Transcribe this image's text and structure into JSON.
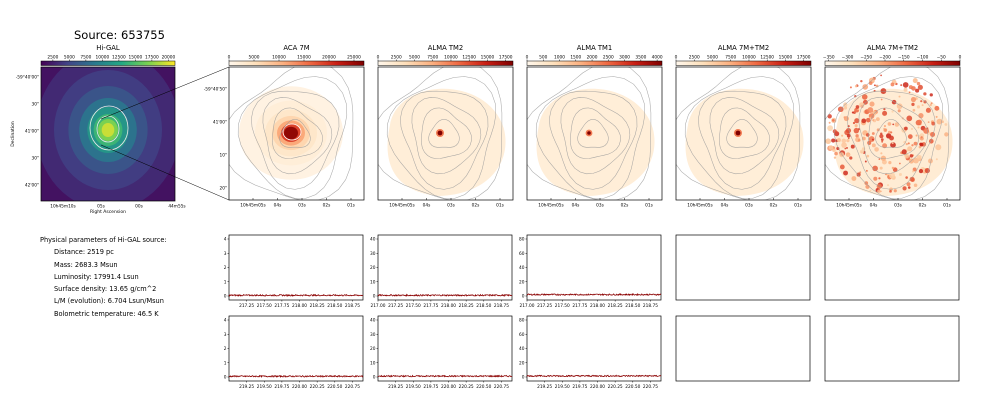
{
  "source_title": "Source: 653755",
  "info": {
    "header": "Physical parameters of Hi-GAL source:",
    "rows": [
      "Distance: 2519 pc",
      "Mass: 2683.3 Msun",
      "Luminosity: 17991.4 Lsun",
      "Surface density: 13.65 g/cm^2",
      "L/M (evolution): 6.704 Lsun/Msun",
      "Bolometric temperature: 46.5 K"
    ]
  },
  "colors": {
    "spectrum": "#8b0000",
    "frame": "#000000",
    "contour": "#9a9a9a"
  },
  "chart_data": [
    {
      "type": "heatmap",
      "title": "Hi-GAL",
      "colormap": "viridis",
      "colorbar_ticks": [
        "2500",
        "5000",
        "7500",
        "10000",
        "12500",
        "15000",
        "17500",
        "20000"
      ],
      "colorbar_range": [
        700,
        21000
      ],
      "xlabel": "Right Ascension",
      "ylabel": "Declination",
      "xticks": [
        "10h45m10s",
        "05s",
        "00s",
        "44m55s"
      ],
      "yticks": [
        "-59°40'00\"",
        "30\"",
        "41'00\"",
        "30\"",
        "42'00\""
      ]
    },
    {
      "type": "heatmap",
      "title": "ACA 7M",
      "colormap": "OrRd",
      "colorbar_ticks": [
        "0",
        "5000",
        "10000",
        "15000",
        "20000",
        "25000"
      ],
      "colorbar_range": [
        0,
        27000
      ],
      "xticks": [
        "10h45m05s",
        "04s",
        "03s",
        "02s",
        "01s"
      ],
      "yticks": [
        "-59°40'50\"",
        "41'00\"",
        "10\"",
        "20\""
      ]
    },
    {
      "type": "heatmap",
      "title": "ALMA TM2",
      "colormap": "OrRd",
      "colorbar_ticks": [
        "0",
        "2500",
        "5000",
        "7500",
        "10000",
        "12500",
        "15000",
        "17500"
      ],
      "colorbar_range": [
        0,
        18500
      ],
      "xticks": [
        "10h45m05s",
        "04s",
        "03s",
        "02s",
        "01s"
      ]
    },
    {
      "type": "heatmap",
      "title": "ALMA TM1",
      "colormap": "OrRd",
      "colorbar_ticks": [
        "0",
        "500",
        "1000",
        "1500",
        "2000",
        "2500",
        "3000",
        "3500",
        "4000"
      ],
      "colorbar_range": [
        0,
        4150
      ],
      "xticks": [
        "10h45m05s",
        "04s",
        "03s",
        "02s",
        "01s"
      ]
    },
    {
      "type": "heatmap",
      "title": "ALMA 7M+TM2",
      "colormap": "OrRd",
      "colorbar_ticks": [
        "0",
        "2500",
        "5000",
        "7500",
        "10000",
        "12500",
        "15000",
        "17500"
      ],
      "colorbar_range": [
        0,
        18500
      ],
      "xticks": [
        "10h45m05s",
        "04s",
        "03s",
        "02s",
        "01s"
      ]
    },
    {
      "type": "heatmap",
      "title": "ALMA 7M+TM2",
      "colormap": "OrRd",
      "colorbar_ticks": [
        "−350",
        "−300",
        "−250",
        "−200",
        "−150",
        "−100",
        "−50",
        "0"
      ],
      "colorbar_range": [
        -360,
        0
      ],
      "xticks": [
        "10h45m05s",
        "04s",
        "03s",
        "02s",
        "01s"
      ]
    },
    {
      "type": "line",
      "xlim": [
        217.0,
        218.9
      ],
      "xticks": [
        "217.25",
        "217.50",
        "217.75",
        "218.00",
        "218.25",
        "218.50",
        "218.75"
      ],
      "ylim": [
        0,
        4
      ],
      "yticks": [
        "0",
        "1",
        "2",
        "3",
        "4"
      ],
      "baseline": 0.05
    },
    {
      "type": "line",
      "xlim": [
        217.0,
        218.9
      ],
      "xticks": [
        "217.00",
        "217.25",
        "217.50",
        "217.75",
        "218.00",
        "218.25",
        "218.50",
        "218.75"
      ],
      "ylim": [
        0,
        40
      ],
      "yticks": [
        "0",
        "10",
        "20",
        "30",
        "40"
      ],
      "baseline": 0.5
    },
    {
      "type": "line",
      "xlim": [
        217.0,
        218.9
      ],
      "xticks": [
        "217.00",
        "217.25",
        "217.50",
        "217.75",
        "218.00",
        "218.25",
        "218.50",
        "218.75"
      ],
      "ylim": [
        0,
        80
      ],
      "yticks": [
        "0",
        "20",
        "40",
        "60",
        "80"
      ],
      "baseline": 2.0
    },
    {
      "type": "line",
      "xlim": [
        219.0,
        220.9
      ],
      "xticks": [
        "219.25",
        "219.50",
        "219.75",
        "220.00",
        "220.25",
        "220.50",
        "220.75"
      ],
      "ylim": [
        0,
        4
      ],
      "yticks": [
        "0",
        "1",
        "2",
        "3",
        "4"
      ],
      "baseline": 0.05
    },
    {
      "type": "line",
      "xlim": [
        219.0,
        220.9
      ],
      "xticks": [
        "219.25",
        "219.50",
        "219.75",
        "220.00",
        "220.25",
        "220.50",
        "220.75"
      ],
      "ylim": [
        0,
        40
      ],
      "yticks": [
        "0",
        "10",
        "20",
        "30",
        "40"
      ],
      "baseline": 0.6
    },
    {
      "type": "line",
      "xlim": [
        219.0,
        220.9
      ],
      "xticks": [
        "219.25",
        "219.50",
        "219.75",
        "220.00",
        "220.25",
        "220.50",
        "220.75"
      ],
      "ylim": [
        0,
        80
      ],
      "yticks": [
        "0",
        "20",
        "40",
        "60",
        "80"
      ],
      "baseline": 1.5
    }
  ]
}
